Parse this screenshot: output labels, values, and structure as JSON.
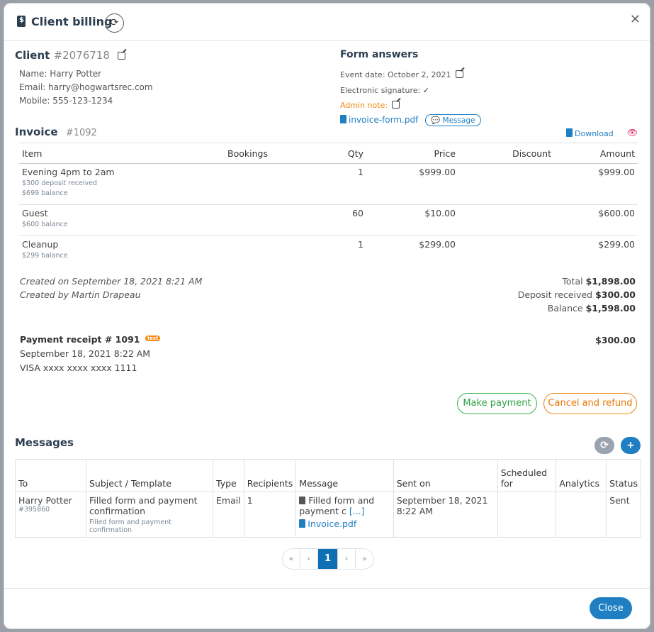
{
  "header": {
    "title": "Client billing"
  },
  "client": {
    "heading": "Client",
    "id": "#2076718",
    "name": "Name: Harry Potter",
    "email": "Email: harry@hogwartsrec.com",
    "mobile": "Mobile: 555-123-1234"
  },
  "form": {
    "heading": "Form answers",
    "event_date": "Event date: October 2, 2021",
    "signature": "Electronic signature:",
    "admin_note": "Admin note:",
    "file": "invoice-form.pdf",
    "message_btn": "Message"
  },
  "invoice": {
    "heading": "Invoice",
    "id": "#1092",
    "download": "Download",
    "columns": [
      "Item",
      "Bookings",
      "Qty",
      "Price",
      "Discount",
      "Amount"
    ],
    "rows": [
      {
        "item": "Evening 4pm to 2am",
        "notes": [
          "$300 deposit received",
          "$699 balance"
        ],
        "qty": "1",
        "price": "$999.00",
        "amount": "$999.00"
      },
      {
        "item": "Guest",
        "notes": [
          "$600 balance"
        ],
        "qty": "60",
        "price": "$10.00",
        "amount": "$600.00"
      },
      {
        "item": "Cleanup",
        "notes": [
          "$299 balance"
        ],
        "qty": "1",
        "price": "$299.00",
        "amount": "$299.00"
      }
    ],
    "created_on": "Created on September 18, 2021 8:21 AM",
    "created_by": "Created by Martin Drapeau",
    "total_label": "Total",
    "total": "$1,898.00",
    "deposit_label": "Deposit received",
    "deposit": "$300.00",
    "balance_label": "Balance",
    "balance": "$1,598.00"
  },
  "receipt": {
    "title": "Payment receipt # 1091",
    "badge": "test",
    "date": "September 18, 2021 8:22 AM",
    "card": "VISA xxxx xxxx xxxx 1111",
    "amount": "$300.00"
  },
  "actions": {
    "make_payment": "Make payment",
    "cancel_refund": "Cancel and refund"
  },
  "messages": {
    "heading": "Messages",
    "columns": [
      "To",
      "Subject / Template",
      "Type",
      "Recipients",
      "Message",
      "Sent on",
      "Scheduled for",
      "Analytics",
      "Status"
    ],
    "row": {
      "to": "Harry Potter",
      "to_id": "#395860",
      "subject": "Filled form and payment confirmation",
      "template": "Filled form and payment confirmation",
      "type": "Email",
      "recipients": "1",
      "message": "Filled form and payment c",
      "more": "[...]",
      "attachment": "Invoice.pdf",
      "sent": "September 18, 2021 8:22 AM",
      "status": "Sent"
    }
  },
  "pagination": {
    "first": "«",
    "prev": "‹",
    "current": "1",
    "next": "›",
    "last": "»"
  },
  "footer": {
    "close": "Close"
  }
}
